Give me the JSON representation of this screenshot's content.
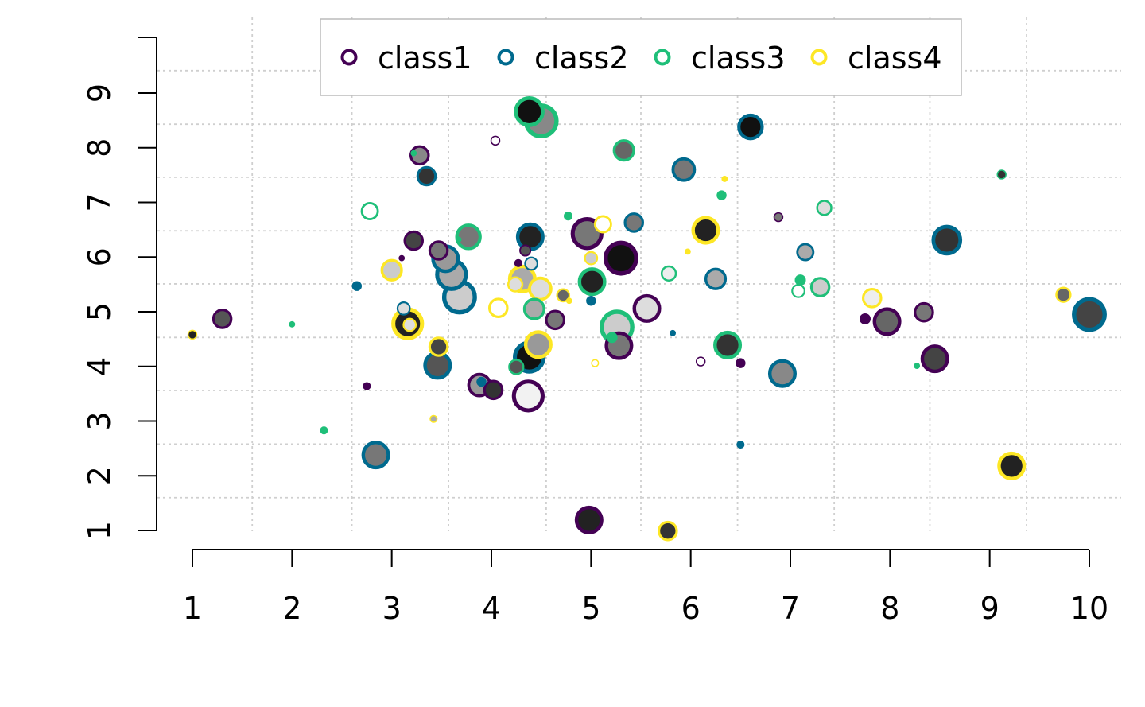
{
  "chart_data": {
    "type": "scatter",
    "title": "",
    "xlabel": "",
    "ylabel": "",
    "xlim": [
      1,
      10
    ],
    "ylim": [
      1,
      9
    ],
    "x_ticks": [
      "1",
      "2",
      "3",
      "4",
      "5",
      "6",
      "7",
      "8",
      "9",
      "10"
    ],
    "y_ticks": [
      "1",
      "2",
      "3",
      "4",
      "5",
      "6",
      "7",
      "8",
      "9"
    ],
    "grid": true,
    "grid_style": "dotted",
    "legend_position": "top",
    "point_style": "bubble: outline ring colored by class, inner fill gray shade, marker size varies",
    "series": [
      {
        "name": "class1",
        "color": "#440154",
        "points": [
          {
            "x": 1.3,
            "y": 4.87,
            "s": 4,
            "fill": "#555555"
          },
          {
            "x": 2.75,
            "y": 3.64,
            "s": 1,
            "fill": "#440154"
          },
          {
            "x": 3.1,
            "y": 5.98,
            "s": 0.5,
            "fill": "#440154"
          },
          {
            "x": 3.22,
            "y": 6.3,
            "s": 4,
            "fill": "#444444"
          },
          {
            "x": 3.28,
            "y": 7.86,
            "s": 4,
            "fill": "#888888"
          },
          {
            "x": 3.47,
            "y": 6.12,
            "s": 4,
            "fill": "#777777"
          },
          {
            "x": 3.88,
            "y": 3.66,
            "s": 5,
            "fill": "#999999"
          },
          {
            "x": 4.02,
            "y": 3.57,
            "s": 4,
            "fill": "#333333"
          },
          {
            "x": 4.04,
            "y": 8.13,
            "s": 1.5,
            "fill": "#ffffff"
          },
          {
            "x": 4.27,
            "y": 5.89,
            "s": 1,
            "fill": "#440154"
          },
          {
            "x": 4.34,
            "y": 6.12,
            "s": 2,
            "fill": "#555555"
          },
          {
            "x": 4.37,
            "y": 3.46,
            "s": 7,
            "fill": "#f2f2f2"
          },
          {
            "x": 4.64,
            "y": 4.85,
            "s": 4,
            "fill": "#777777"
          },
          {
            "x": 4.96,
            "y": 6.43,
            "s": 7,
            "fill": "#777777"
          },
          {
            "x": 4.98,
            "y": 1.19,
            "s": 6,
            "fill": "#222222"
          },
          {
            "x": 5.28,
            "y": 4.38,
            "s": 6,
            "fill": "#777777"
          },
          {
            "x": 5.3,
            "y": 5.98,
            "s": 7.5,
            "fill": "#111111"
          },
          {
            "x": 5.56,
            "y": 5.06,
            "s": 6,
            "fill": "#dddddd"
          },
          {
            "x": 6.1,
            "y": 4.09,
            "s": 1.5,
            "fill": "#ffffff"
          },
          {
            "x": 6.5,
            "y": 4.06,
            "s": 1.5,
            "fill": "#440154"
          },
          {
            "x": 6.88,
            "y": 6.73,
            "s": 1.5,
            "fill": "#777777"
          },
          {
            "x": 7.75,
            "y": 4.87,
            "s": 1.8,
            "fill": "#440154"
          },
          {
            "x": 7.97,
            "y": 4.82,
            "s": 6,
            "fill": "#666666"
          },
          {
            "x": 8.34,
            "y": 4.99,
            "s": 4,
            "fill": "#777777"
          },
          {
            "x": 8.45,
            "y": 4.14,
            "s": 6,
            "fill": "#444444"
          }
        ]
      },
      {
        "name": "class2",
        "color": "#006a8e",
        "points": [
          {
            "x": 2.65,
            "y": 5.47,
            "s": 1.5,
            "fill": "#006a8e"
          },
          {
            "x": 2.84,
            "y": 2.38,
            "s": 6,
            "fill": "#777777"
          },
          {
            "x": 3.12,
            "y": 5.06,
            "s": 2.5,
            "fill": "#dddddd"
          },
          {
            "x": 3.35,
            "y": 7.48,
            "s": 4,
            "fill": "#333333"
          },
          {
            "x": 3.46,
            "y": 4.02,
            "s": 6,
            "fill": "#555555"
          },
          {
            "x": 3.54,
            "y": 5.97,
            "s": 6,
            "fill": "#999999"
          },
          {
            "x": 3.6,
            "y": 5.68,
            "s": 7,
            "fill": "#aaaaaa"
          },
          {
            "x": 3.68,
            "y": 5.27,
            "s": 7.5,
            "fill": "#cccccc"
          },
          {
            "x": 3.9,
            "y": 3.72,
            "s": 1.5,
            "fill": "#006a8e"
          },
          {
            "x": 4.38,
            "y": 4.17,
            "s": 7,
            "fill": "#111111"
          },
          {
            "x": 4.39,
            "y": 6.37,
            "s": 6,
            "fill": "#222222"
          },
          {
            "x": 4.4,
            "y": 5.88,
            "s": 2.5,
            "fill": "#dddddd"
          },
          {
            "x": 5.0,
            "y": 5.2,
            "s": 1.5,
            "fill": "#006a8e"
          },
          {
            "x": 5.43,
            "y": 6.63,
            "s": 4,
            "fill": "#777777"
          },
          {
            "x": 5.82,
            "y": 4.61,
            "s": 0.5,
            "fill": "#006a8e"
          },
          {
            "x": 5.93,
            "y": 7.6,
            "s": 5,
            "fill": "#777777"
          },
          {
            "x": 6.25,
            "y": 5.6,
            "s": 4.5,
            "fill": "#aaaaaa"
          },
          {
            "x": 6.5,
            "y": 2.57,
            "s": 1,
            "fill": "#006a8e"
          },
          {
            "x": 6.6,
            "y": 8.38,
            "s": 5.5,
            "fill": "#111111"
          },
          {
            "x": 6.92,
            "y": 3.87,
            "s": 6,
            "fill": "#888888"
          },
          {
            "x": 7.15,
            "y": 6.09,
            "s": 3.5,
            "fill": "#aaaaaa"
          },
          {
            "x": 8.57,
            "y": 6.31,
            "s": 6.5,
            "fill": "#333333"
          },
          {
            "x": 10.0,
            "y": 4.95,
            "s": 7.5,
            "fill": "#444444"
          }
        ]
      },
      {
        "name": "class3",
        "color": "#1fbf79",
        "points": [
          {
            "x": 2.0,
            "y": 4.77,
            "s": 0.5,
            "fill": "#1fbf79"
          },
          {
            "x": 2.32,
            "y": 2.83,
            "s": 1,
            "fill": "#1fbf79"
          },
          {
            "x": 2.78,
            "y": 6.84,
            "s": 3.5,
            "fill": "#ffffff"
          },
          {
            "x": 3.22,
            "y": 7.9,
            "s": 0.5,
            "fill": "#1fbf79"
          },
          {
            "x": 3.67,
            "y": 6.32,
            "s": 0.5,
            "fill": "#1fbf79"
          },
          {
            "x": 3.77,
            "y": 6.37,
            "s": 5.5,
            "fill": "#777777"
          },
          {
            "x": 4.25,
            "y": 3.99,
            "s": 3,
            "fill": "#555555"
          },
          {
            "x": 4.38,
            "y": 8.66,
            "s": 6.5,
            "fill": "#111111"
          },
          {
            "x": 4.43,
            "y": 5.05,
            "s": 4.5,
            "fill": "#aaaaaa"
          },
          {
            "x": 4.5,
            "y": 8.49,
            "s": 7.5,
            "fill": "#888888"
          },
          {
            "x": 4.77,
            "y": 6.75,
            "s": 1.2,
            "fill": "#1fbf79"
          },
          {
            "x": 5.01,
            "y": 5.55,
            "s": 6,
            "fill": "#222222"
          },
          {
            "x": 5.21,
            "y": 4.53,
            "s": 1.8,
            "fill": "#1fbf79"
          },
          {
            "x": 5.26,
            "y": 4.72,
            "s": 7.5,
            "fill": "#cccccc"
          },
          {
            "x": 5.33,
            "y": 7.95,
            "s": 4.5,
            "fill": "#666666"
          },
          {
            "x": 5.78,
            "y": 5.7,
            "s": 3,
            "fill": "#eeeeee"
          },
          {
            "x": 6.31,
            "y": 7.13,
            "s": 1.5,
            "fill": "#1fbf79"
          },
          {
            "x": 6.37,
            "y": 4.39,
            "s": 6,
            "fill": "#333333"
          },
          {
            "x": 7.08,
            "y": 5.38,
            "s": 2.5,
            "fill": "#ffffff"
          },
          {
            "x": 7.1,
            "y": 5.58,
            "s": 1.8,
            "fill": "#1fbf79"
          },
          {
            "x": 7.3,
            "y": 5.45,
            "s": 4,
            "fill": "#cccccc"
          },
          {
            "x": 7.34,
            "y": 6.9,
            "s": 3,
            "fill": "#dddddd"
          },
          {
            "x": 8.27,
            "y": 4.01,
            "s": 0.5,
            "fill": "#1fbf79"
          },
          {
            "x": 9.12,
            "y": 7.51,
            "s": 1.5,
            "fill": "#333333"
          }
        ]
      },
      {
        "name": "class4",
        "color": "#fde725",
        "points": [
          {
            "x": 1.0,
            "y": 4.58,
            "s": 1.5,
            "fill": "#222222"
          },
          {
            "x": 3.0,
            "y": 5.76,
            "s": 4.5,
            "fill": "#cccccc"
          },
          {
            "x": 3.16,
            "y": 4.78,
            "s": 7,
            "fill": "#222222"
          },
          {
            "x": 3.18,
            "y": 4.76,
            "s": 2.5,
            "fill": "#dddddd"
          },
          {
            "x": 3.42,
            "y": 3.04,
            "s": 1,
            "fill": "#aaaaaa"
          },
          {
            "x": 3.47,
            "y": 4.36,
            "s": 4,
            "fill": "#444444"
          },
          {
            "x": 4.07,
            "y": 5.07,
            "s": 4,
            "fill": "#ffffff"
          },
          {
            "x": 4.24,
            "y": 5.5,
            "s": 3,
            "fill": "#dddddd"
          },
          {
            "x": 4.31,
            "y": 5.6,
            "s": 6,
            "fill": "#aaaaaa"
          },
          {
            "x": 4.47,
            "y": 4.4,
            "s": 6,
            "fill": "#999999"
          },
          {
            "x": 4.49,
            "y": 5.42,
            "s": 5,
            "fill": "#dddddd"
          },
          {
            "x": 4.72,
            "y": 5.3,
            "s": 2.5,
            "fill": "#666666"
          },
          {
            "x": 4.78,
            "y": 5.2,
            "s": 0.5,
            "fill": "#fde725"
          },
          {
            "x": 5.0,
            "y": 5.98,
            "s": 2.5,
            "fill": "#cccccc"
          },
          {
            "x": 5.04,
            "y": 4.06,
            "s": 1,
            "fill": "#ffffff"
          },
          {
            "x": 5.12,
            "y": 6.6,
            "s": 3.5,
            "fill": "#ffffff"
          },
          {
            "x": 5.77,
            "y": 0.99,
            "s": 4,
            "fill": "#333333"
          },
          {
            "x": 5.97,
            "y": 6.1,
            "s": 0.5,
            "fill": "#fde725"
          },
          {
            "x": 6.15,
            "y": 6.49,
            "s": 6,
            "fill": "#222222"
          },
          {
            "x": 6.34,
            "y": 7.43,
            "s": 0.5,
            "fill": "#fde725"
          },
          {
            "x": 7.82,
            "y": 5.25,
            "s": 4,
            "fill": "#eeeeee"
          },
          {
            "x": 9.22,
            "y": 2.18,
            "s": 6,
            "fill": "#222222"
          },
          {
            "x": 9.74,
            "y": 5.31,
            "s": 3,
            "fill": "#666666"
          }
        ]
      }
    ]
  }
}
